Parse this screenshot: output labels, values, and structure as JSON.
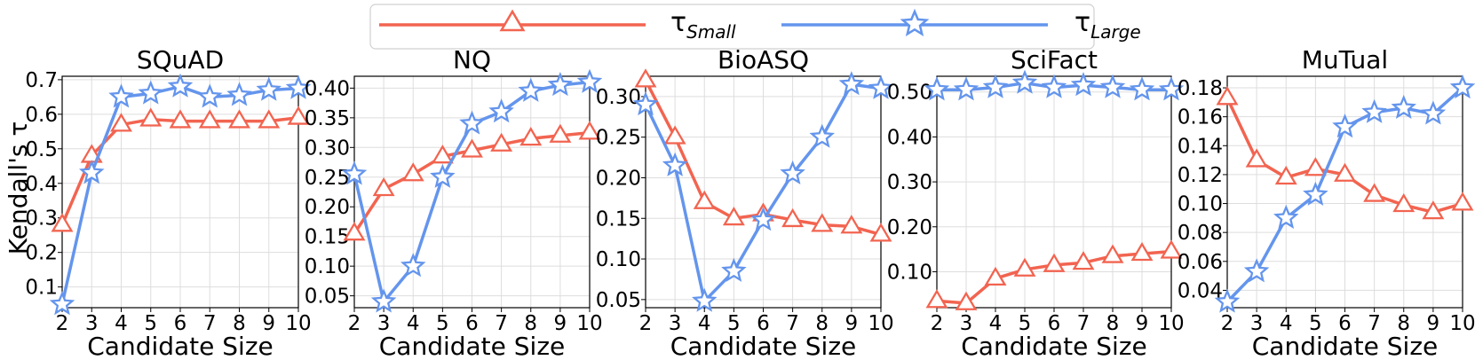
{
  "legend": {
    "small_symbol": "τ",
    "small_sub": "Small",
    "large_symbol": "τ",
    "large_sub": "Large"
  },
  "colors": {
    "small": "#F26450",
    "large": "#6495ED"
  },
  "chart_data": [
    {
      "type": "line",
      "title": "SQuAD",
      "xlabel": "Candidate Size",
      "ylabel": "Kendall's τ",
      "x": [
        2,
        3,
        4,
        5,
        6,
        7,
        8,
        9,
        10
      ],
      "xlim": [
        2,
        10
      ],
      "ylim": [
        0.04,
        0.71
      ],
      "yticks": [
        0.1,
        0.2,
        0.3,
        0.4,
        0.5,
        0.6,
        0.7
      ],
      "ytick_labels": [
        "0.1",
        "0.2",
        "0.3",
        "0.4",
        "0.5",
        "0.6",
        "0.7"
      ],
      "series": [
        {
          "name": "τSmall",
          "marker": "triangle",
          "values": [
            0.28,
            0.48,
            0.57,
            0.585,
            0.58,
            0.58,
            0.58,
            0.58,
            0.59
          ]
        },
        {
          "name": "τLarge",
          "marker": "star",
          "values": [
            0.05,
            0.43,
            0.65,
            0.66,
            0.68,
            0.65,
            0.655,
            0.67,
            0.675
          ]
        }
      ]
    },
    {
      "type": "line",
      "title": "NQ",
      "xlabel": "Candidate Size",
      "ylabel": "",
      "x": [
        2,
        3,
        4,
        5,
        6,
        7,
        8,
        9,
        10
      ],
      "xlim": [
        2,
        10
      ],
      "ylim": [
        0.03,
        0.42
      ],
      "yticks": [
        0.05,
        0.1,
        0.15,
        0.2,
        0.25,
        0.3,
        0.35,
        0.4
      ],
      "ytick_labels": [
        "0.05",
        "0.10",
        "0.15",
        "0.20",
        "0.25",
        "0.30",
        "0.35",
        "0.40"
      ],
      "series": [
        {
          "name": "τSmall",
          "marker": "triangle",
          "values": [
            0.155,
            0.23,
            0.255,
            0.285,
            0.295,
            0.305,
            0.315,
            0.32,
            0.325
          ]
        },
        {
          "name": "τLarge",
          "marker": "star",
          "values": [
            0.255,
            0.04,
            0.1,
            0.25,
            0.34,
            0.36,
            0.395,
            0.405,
            0.41
          ]
        }
      ]
    },
    {
      "type": "line",
      "title": "BioASQ",
      "xlabel": "Candidate Size",
      "ylabel": "",
      "x": [
        2,
        3,
        4,
        5,
        6,
        7,
        8,
        9,
        10
      ],
      "xlim": [
        2,
        10
      ],
      "ylim": [
        0.04,
        0.325
      ],
      "yticks": [
        0.05,
        0.1,
        0.15,
        0.2,
        0.25,
        0.3
      ],
      "ytick_labels": [
        "0.05",
        "0.10",
        "0.15",
        "0.20",
        "0.25",
        "0.30"
      ],
      "series": [
        {
          "name": "τSmall",
          "marker": "triangle",
          "values": [
            0.32,
            0.25,
            0.17,
            0.15,
            0.155,
            0.148,
            0.142,
            0.14,
            0.13
          ]
        },
        {
          "name": "τLarge",
          "marker": "star",
          "values": [
            0.29,
            0.215,
            0.048,
            0.085,
            0.148,
            0.205,
            0.25,
            0.315,
            0.31
          ]
        }
      ]
    },
    {
      "type": "line",
      "title": "SciFact",
      "xlabel": "Candidate Size",
      "ylabel": "",
      "x": [
        2,
        3,
        4,
        5,
        6,
        7,
        8,
        9,
        10
      ],
      "xlim": [
        2,
        10
      ],
      "ylim": [
        0.02,
        0.535
      ],
      "yticks": [
        0.1,
        0.2,
        0.3,
        0.4,
        0.5
      ],
      "ytick_labels": [
        "0.10",
        "0.20",
        "0.30",
        "0.40",
        "0.50"
      ],
      "series": [
        {
          "name": "τSmall",
          "marker": "triangle",
          "values": [
            0.035,
            0.03,
            0.085,
            0.105,
            0.115,
            0.12,
            0.135,
            0.14,
            0.145
          ]
        },
        {
          "name": "τLarge",
          "marker": "star",
          "values": [
            0.505,
            0.505,
            0.51,
            0.52,
            0.51,
            0.515,
            0.51,
            0.505,
            0.505
          ]
        }
      ]
    },
    {
      "type": "line",
      "title": "MuTual",
      "xlabel": "Candidate Size",
      "ylabel": "",
      "x": [
        2,
        3,
        4,
        5,
        6,
        7,
        8,
        9,
        10
      ],
      "xlim": [
        2,
        10
      ],
      "ylim": [
        0.028,
        0.188
      ],
      "yticks": [
        0.04,
        0.06,
        0.08,
        0.1,
        0.12,
        0.14,
        0.16,
        0.18
      ],
      "ytick_labels": [
        "0.04",
        "0.06",
        "0.08",
        "0.10",
        "0.12",
        "0.14",
        "0.16",
        "0.18"
      ],
      "series": [
        {
          "name": "τSmall",
          "marker": "triangle",
          "values": [
            0.173,
            0.13,
            0.118,
            0.124,
            0.12,
            0.106,
            0.099,
            0.094,
            0.1
          ]
        },
        {
          "name": "τLarge",
          "marker": "star",
          "values": [
            0.032,
            0.053,
            0.09,
            0.106,
            0.153,
            0.163,
            0.166,
            0.162,
            0.18
          ]
        }
      ]
    }
  ]
}
